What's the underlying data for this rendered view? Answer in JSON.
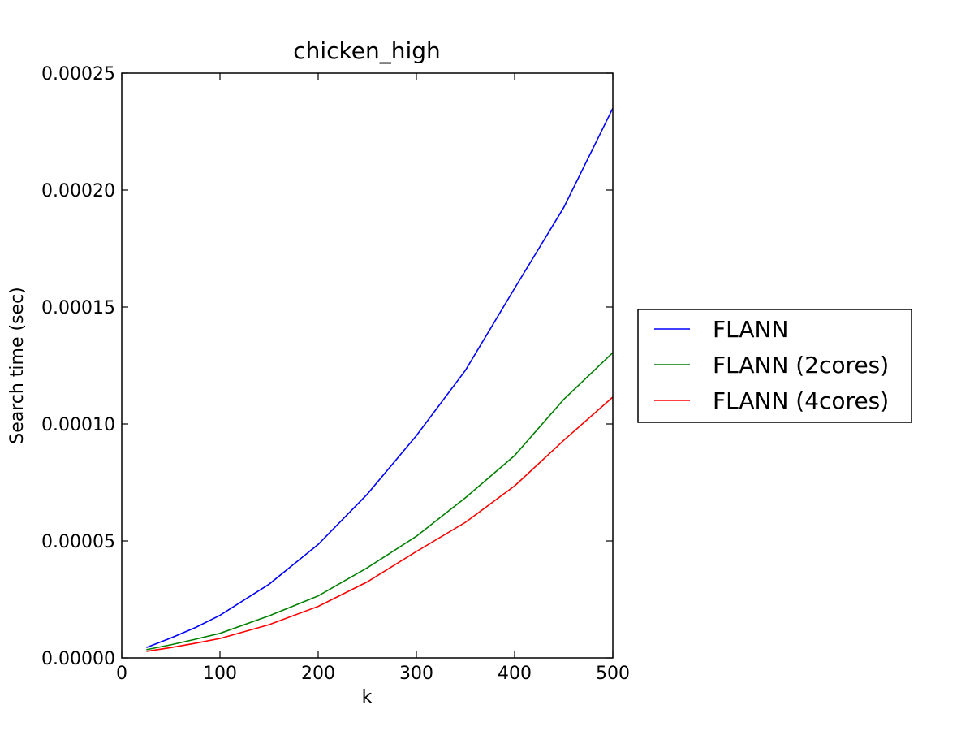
{
  "chart_data": {
    "type": "line",
    "title": "chicken_high",
    "xlabel": "k",
    "ylabel": "Search time (sec)",
    "xlim": [
      0,
      500
    ],
    "ylim": [
      0,
      0.00025
    ],
    "xticks": [
      0,
      100,
      200,
      300,
      400,
      500
    ],
    "xtick_labels": [
      "0",
      "100",
      "200",
      "300",
      "400",
      "500"
    ],
    "yticks": [
      0,
      5e-05,
      0.0001,
      0.00015,
      0.0002,
      0.00025
    ],
    "ytick_labels": [
      "0.00000",
      "0.00005",
      "0.00010",
      "0.00015",
      "0.00020",
      "0.00025"
    ],
    "grid": false,
    "legend_position": "outside-right",
    "x": [
      25,
      50,
      75,
      100,
      150,
      200,
      250,
      300,
      350,
      400,
      450,
      500
    ],
    "series": [
      {
        "name": "FLANN",
        "color": "#0000ff",
        "values": [
          4.4e-06,
          8.5e-06,
          1.3e-05,
          1.82e-05,
          3.15e-05,
          4.85e-05,
          7e-05,
          9.5e-05,
          0.000123,
          0.000158,
          0.0001925,
          0.000235
        ]
      },
      {
        "name": "FLANN (2cores)",
        "color": "#008000",
        "values": [
          3.5e-06,
          5.6e-06,
          8e-06,
          1.05e-05,
          1.8e-05,
          2.65e-05,
          3.85e-05,
          5.2e-05,
          6.85e-05,
          8.65e-05,
          0.0001105,
          0.0001305
        ]
      },
      {
        "name": "FLANN (4cores)",
        "color": "#ff0000",
        "values": [
          2.8e-06,
          4.4e-06,
          6.3e-06,
          8.3e-06,
          1.42e-05,
          2.2e-05,
          3.25e-05,
          4.55e-05,
          5.8e-05,
          7.35e-05,
          9.3e-05,
          0.0001115
        ]
      }
    ]
  }
}
